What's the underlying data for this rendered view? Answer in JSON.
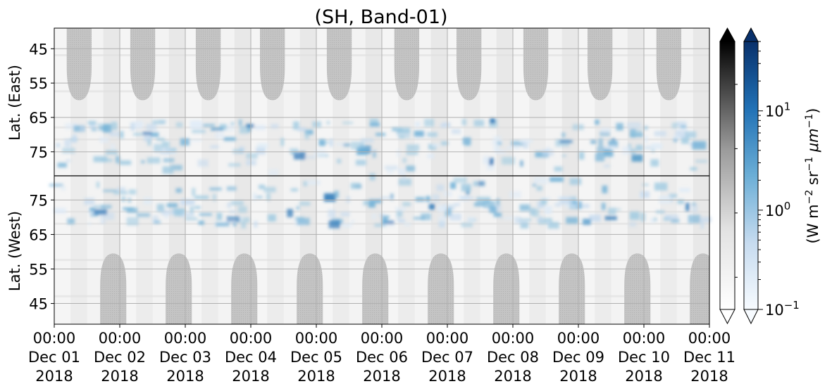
{
  "chart_data": {
    "type": "heatmap",
    "title": "(SH, Band-01)",
    "x_ticks": [
      {
        "time": "00:00",
        "date": "Dec 01",
        "year": "2018"
      },
      {
        "time": "00:00",
        "date": "Dec 02",
        "year": "2018"
      },
      {
        "time": "00:00",
        "date": "Dec 03",
        "year": "2018"
      },
      {
        "time": "00:00",
        "date": "Dec 04",
        "year": "2018"
      },
      {
        "time": "00:00",
        "date": "Dec 05",
        "year": "2018"
      },
      {
        "time": "00:00",
        "date": "Dec 06",
        "year": "2018"
      },
      {
        "time": "00:00",
        "date": "Dec 07",
        "year": "2018"
      },
      {
        "time": "00:00",
        "date": "Dec 08",
        "year": "2018"
      },
      {
        "time": "00:00",
        "date": "Dec 09",
        "year": "2018"
      },
      {
        "time": "00:00",
        "date": "Dec 10",
        "year": "2018"
      },
      {
        "time": "00:00",
        "date": "Dec 11",
        "year": "2018"
      }
    ],
    "x_range": [
      "2018-12-01 00:00",
      "2018-12-11 00:00"
    ],
    "panels": [
      {
        "ylabel": "Lat. (East)",
        "y_ticks": [
          "45",
          "55",
          "65",
          "75"
        ],
        "y_range": [
          39,
          82
        ],
        "y_direction": "increasing downward"
      },
      {
        "ylabel": "Lat. (West)",
        "y_ticks": [
          "75",
          "65",
          "55",
          "45"
        ],
        "y_range": [
          82,
          39
        ],
        "y_direction": "decreasing downward"
      }
    ],
    "grid": true,
    "colorbars": [
      {
        "colormap": "Greys",
        "extend": "both",
        "tick_labels": []
      },
      {
        "colormap": "Blues",
        "scale": "log",
        "range": [
          0.1,
          50
        ],
        "extend": "both",
        "tick_labels": [
          {
            "value": 10,
            "base": "10",
            "exp": "1"
          },
          {
            "value": 1,
            "base": "10",
            "exp": "0"
          },
          {
            "value": 0.1,
            "base": "10",
            "exp": "−1"
          }
        ],
        "label": {
          "prefix": "(W m",
          "exp1": "−2",
          "mid": " sr",
          "exp2": "−1",
          "mu": " μm",
          "exp3": "−1",
          "suffix": ")"
        }
      }
    ],
    "colors": {
      "no_data_gray": "#c6c6c6",
      "background_gray": "#f0f0f0",
      "blue_dark": "#08306b",
      "blue_light": "#deebf7"
    },
    "features": {
      "gray_lobes_top_centers_days": [
        0.38,
        1.35,
        2.35,
        3.33,
        4.35,
        5.38,
        6.33,
        7.35,
        8.33,
        9.38
      ],
      "gray_lobes_bottom_centers_days": [
        0.9,
        1.9,
        2.9,
        3.9,
        4.9,
        5.9,
        6.9,
        7.9,
        8.9,
        9.9
      ],
      "blue_band_latitude_range": [
        66,
        82
      ]
    }
  }
}
